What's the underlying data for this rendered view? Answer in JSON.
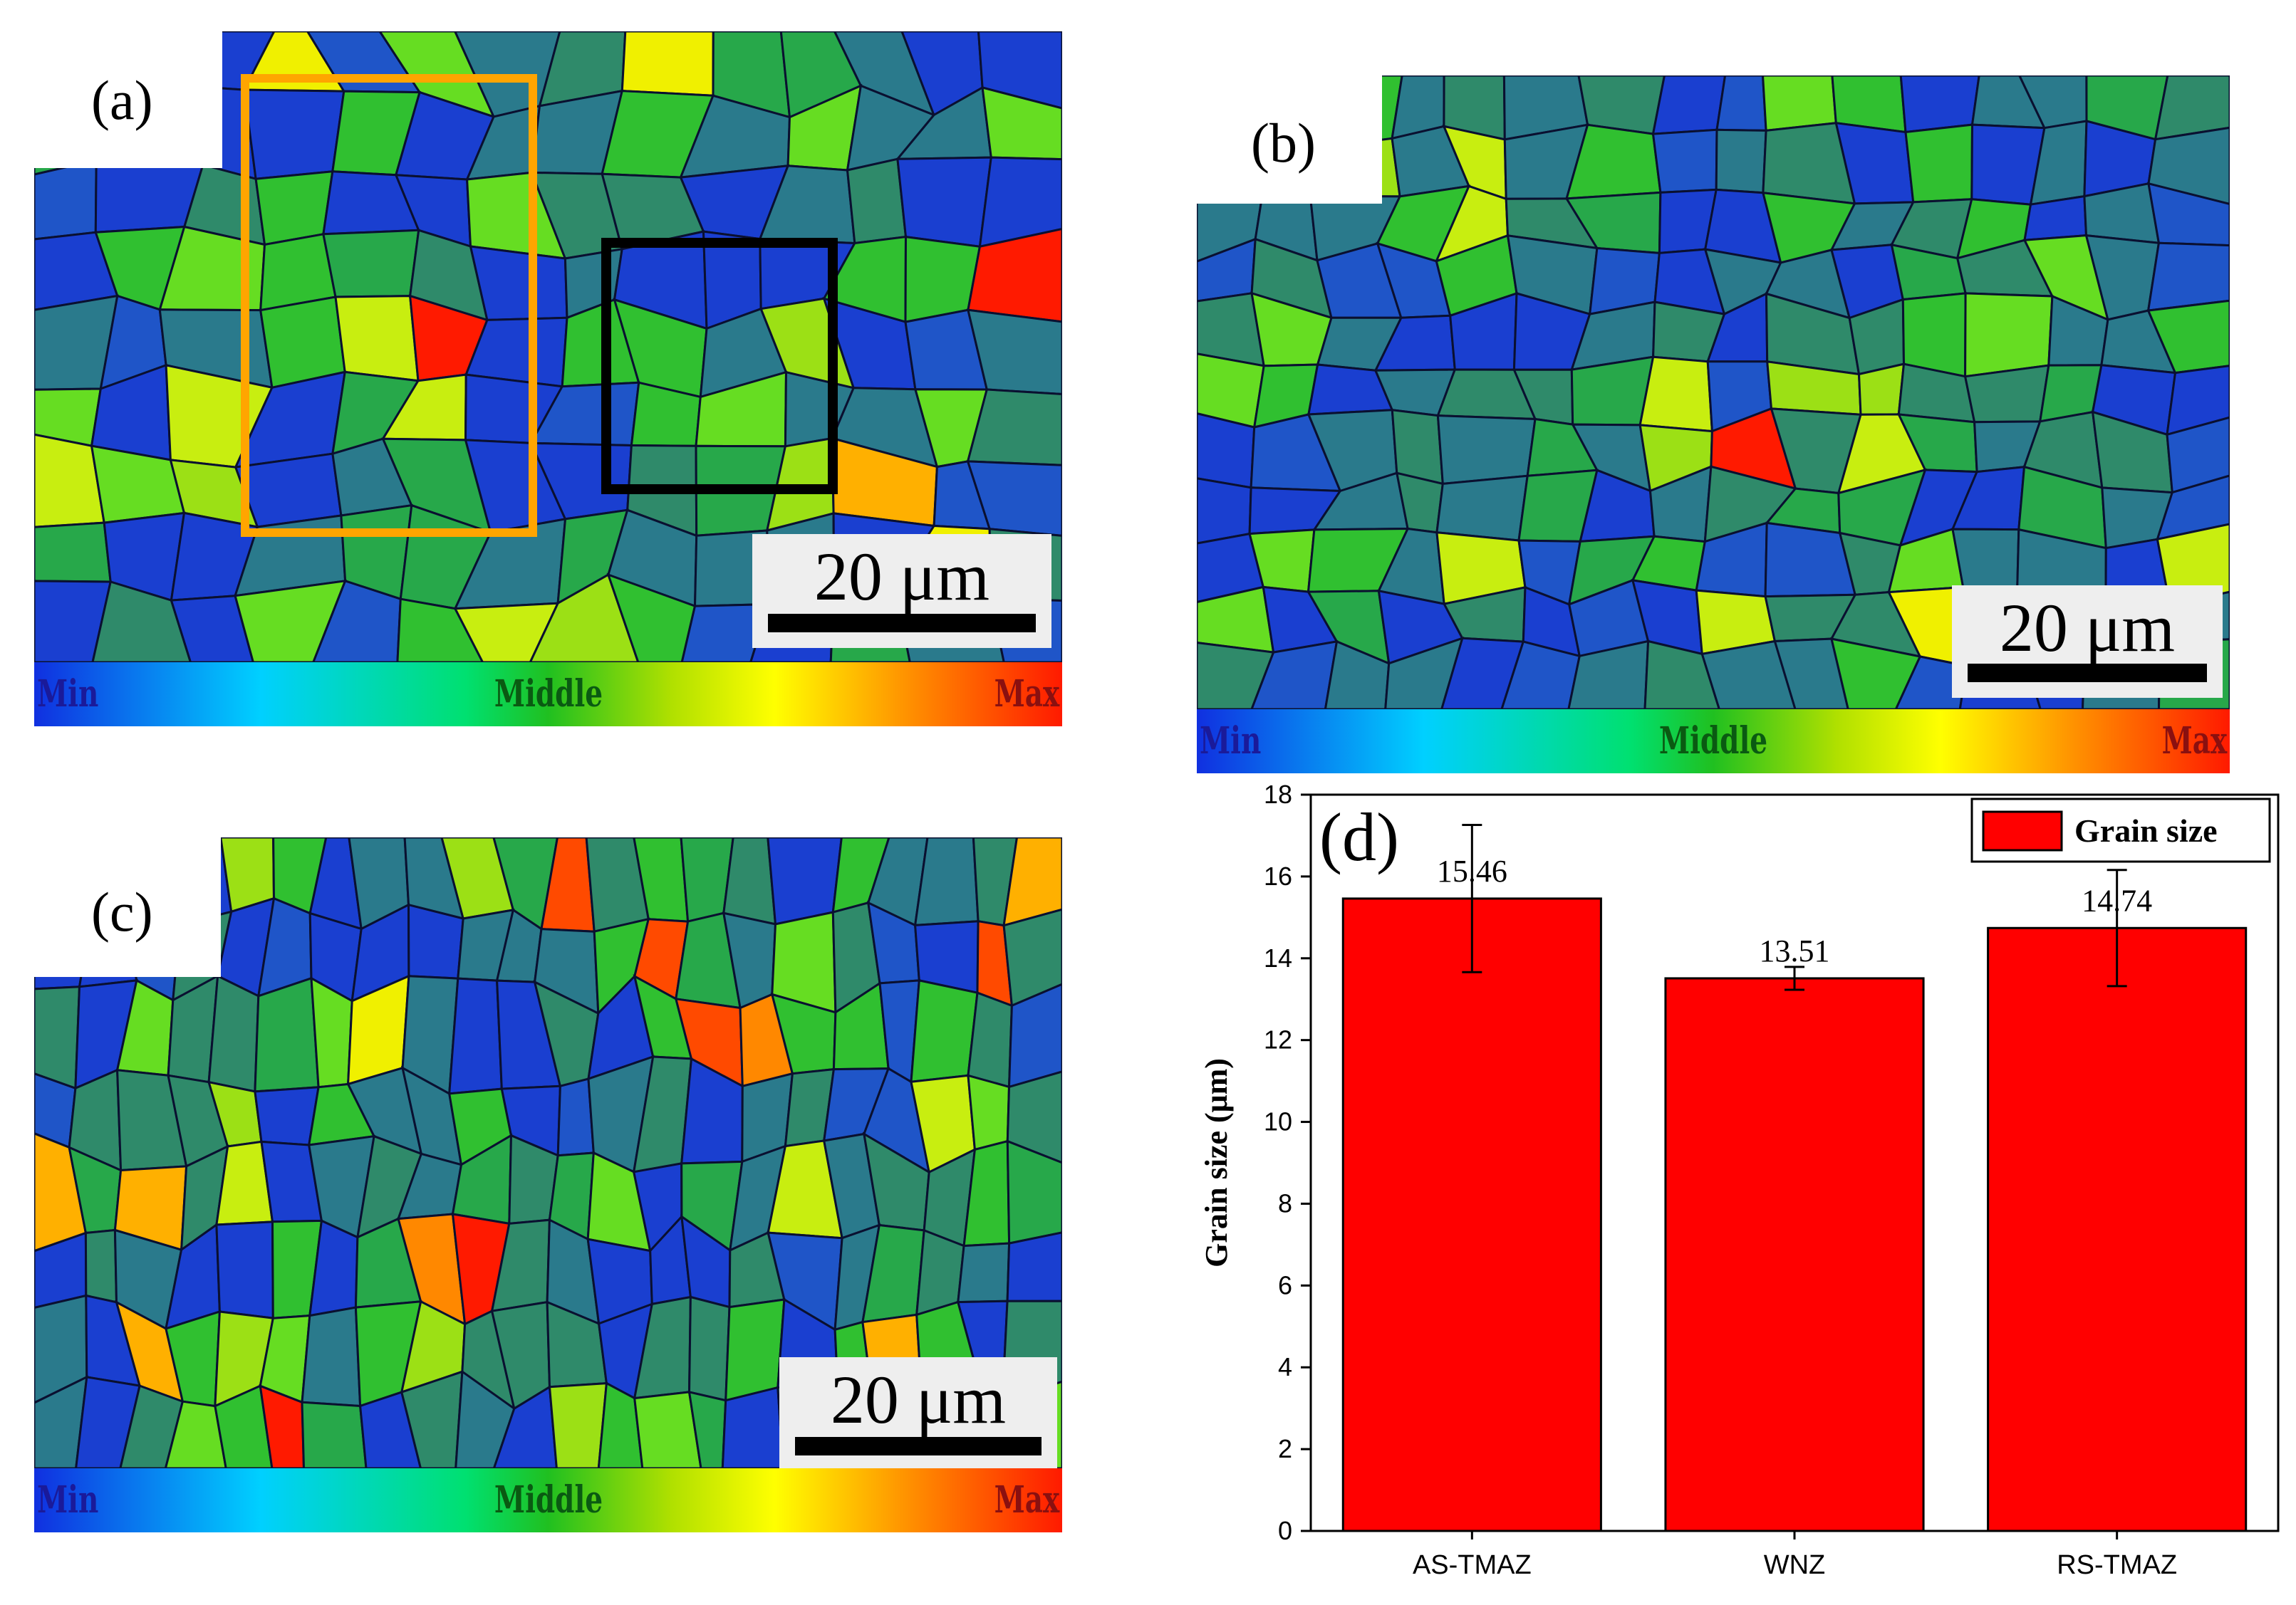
{
  "panels": {
    "a": {
      "label": "(a)",
      "scale_label": "20 μm",
      "colorbar": {
        "min": "Min",
        "middle": "Middle",
        "max": "Max"
      }
    },
    "b": {
      "label": "(b)",
      "scale_label": "20 μm",
      "colorbar": {
        "min": "Min",
        "middle": "Middle",
        "max": "Max"
      }
    },
    "c": {
      "label": "(c)",
      "scale_label": "20 μm",
      "colorbar": {
        "min": "Min",
        "middle": "Middle",
        "max": "Max"
      }
    }
  },
  "colors": {
    "bar_fill": "#ff0000",
    "roi_orange": "#ffa500",
    "roi_black": "#000000",
    "grain_palette": [
      "#1a3fd0",
      "#1f55c8",
      "#2a7a8c",
      "#2f8a6a",
      "#27a84a",
      "#30c030",
      "#66dd22",
      "#9ce015",
      "#c8ee10",
      "#f0f000",
      "#ffb000",
      "#ff8800",
      "#ff4a00",
      "#ff1a00"
    ]
  },
  "chart_data": {
    "type": "bar",
    "panel_label": "(d)",
    "title": "",
    "categories": [
      "AS-TMAZ",
      "WNZ",
      "RS-TMAZ"
    ],
    "series": [
      {
        "name": "Grain size",
        "values": [
          15.46,
          13.51,
          14.74
        ],
        "errors": [
          1.8,
          0.28,
          1.42
        ]
      }
    ],
    "value_labels": [
      "15.46",
      "13.51",
      "14.74"
    ],
    "xlabel": "",
    "ylabel": "Grain size  (μm)",
    "ylim": [
      0,
      18
    ],
    "yticks": [
      0,
      2,
      4,
      6,
      8,
      10,
      12,
      14,
      16,
      18
    ],
    "legend": {
      "label": "Grain size",
      "position": "top-right"
    },
    "grid": false
  }
}
